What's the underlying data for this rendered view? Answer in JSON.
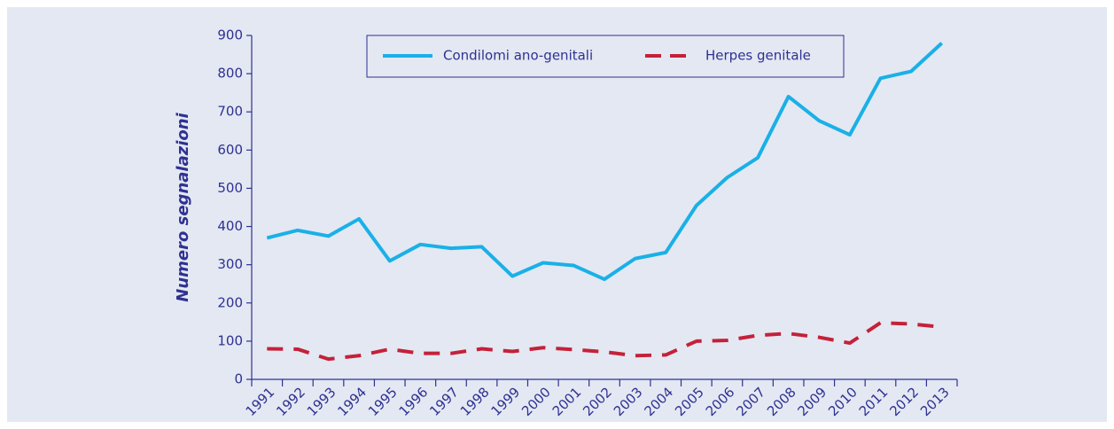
{
  "chart_data": {
    "type": "line",
    "y_label": "Numero segnalazioni",
    "categories": [
      "1991",
      "1992",
      "1993",
      "1994",
      "1995",
      "1996",
      "1997",
      "1998",
      "1999",
      "2000",
      "2001",
      "2002",
      "2003",
      "2004",
      "2005",
      "2006",
      "2007",
      "2008",
      "2009",
      "2010",
      "2011",
      "2012",
      "2013"
    ],
    "series": [
      {
        "name": "Condilomi ano-genitali",
        "color": "#1ab0e8",
        "dash": "none",
        "values": [
          370,
          390,
          375,
          420,
          310,
          353,
          343,
          347,
          270,
          305,
          298,
          262,
          316,
          332,
          455,
          528,
          580,
          740,
          677,
          640,
          788,
          806,
          880
        ]
      },
      {
        "name": "Herpes genitale",
        "color": "#c4213a",
        "dash": "dashed",
        "values": [
          80,
          79,
          53,
          62,
          79,
          68,
          68,
          80,
          73,
          83,
          78,
          72,
          62,
          64,
          100,
          102,
          115,
          120,
          110,
          95,
          148,
          145,
          137
        ]
      }
    ],
    "ylim": [
      0,
      900
    ],
    "yticks": [
      0,
      100,
      200,
      300,
      400,
      500,
      600,
      700,
      800,
      900
    ],
    "legend": "top"
  }
}
